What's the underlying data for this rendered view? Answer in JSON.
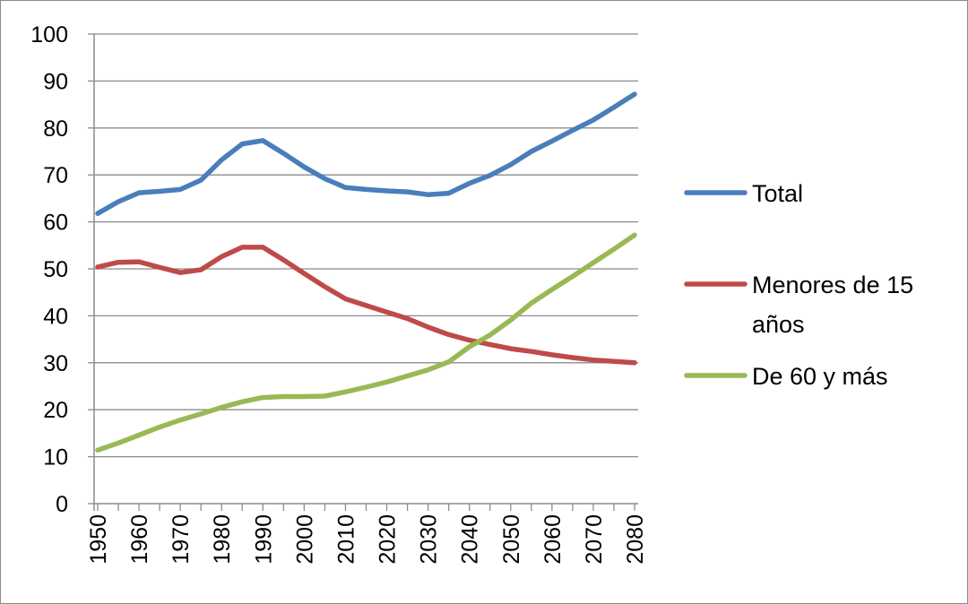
{
  "chart_data": {
    "type": "line",
    "title": "",
    "xlabel": "",
    "ylabel": "",
    "ylim": [
      0,
      100
    ],
    "yticks": [
      0,
      10,
      20,
      30,
      40,
      50,
      60,
      70,
      80,
      90,
      100
    ],
    "xlim": [
      1950,
      2080
    ],
    "xticks": [
      1950,
      1960,
      1970,
      1980,
      1990,
      2000,
      2010,
      2020,
      2030,
      2040,
      2050,
      2060,
      2070,
      2080
    ],
    "grid": "horizontal",
    "legend_position": "right",
    "x": [
      1950,
      1955,
      1960,
      1965,
      1970,
      1975,
      1980,
      1985,
      1990,
      1995,
      2000,
      2005,
      2010,
      2015,
      2020,
      2025,
      2030,
      2035,
      2040,
      2045,
      2050,
      2055,
      2060,
      2065,
      2070,
      2075,
      2080
    ],
    "series": [
      {
        "name": "Total",
        "color": "#4a7ebb",
        "values": [
          61.8,
          64.3,
          66.2,
          66.5,
          66.9,
          68.9,
          73.2,
          76.6,
          77.3,
          74.6,
          71.7,
          69.2,
          67.3,
          66.9,
          66.6,
          66.4,
          65.8,
          66.1,
          68.2,
          69.9,
          72.2,
          75.0,
          77.2,
          79.5,
          81.7,
          84.4,
          87.2
        ]
      },
      {
        "name": "Menores de 15 años",
        "color": "#be4b48",
        "values": [
          50.4,
          51.4,
          51.5,
          50.3,
          49.2,
          49.8,
          52.6,
          54.6,
          54.6,
          51.9,
          49.0,
          46.2,
          43.6,
          42.2,
          40.8,
          39.4,
          37.6,
          36.0,
          34.8,
          33.9,
          33.0,
          32.4,
          31.7,
          31.1,
          30.6,
          30.3,
          30.0
        ]
      },
      {
        "name": "De 60 y más",
        "color": "#98b954",
        "values": [
          11.4,
          12.9,
          14.6,
          16.3,
          17.8,
          19.1,
          20.5,
          21.7,
          22.6,
          22.8,
          22.8,
          22.9,
          23.8,
          24.8,
          25.9,
          27.2,
          28.5,
          30.2,
          33.4,
          35.9,
          39.1,
          42.7,
          45.6,
          48.4,
          51.3,
          54.2,
          57.2
        ]
      }
    ],
    "legend_lines": [
      [
        "Total"
      ],
      [
        "Menores de 15",
        "años"
      ],
      [
        "De 60 y más"
      ]
    ]
  }
}
